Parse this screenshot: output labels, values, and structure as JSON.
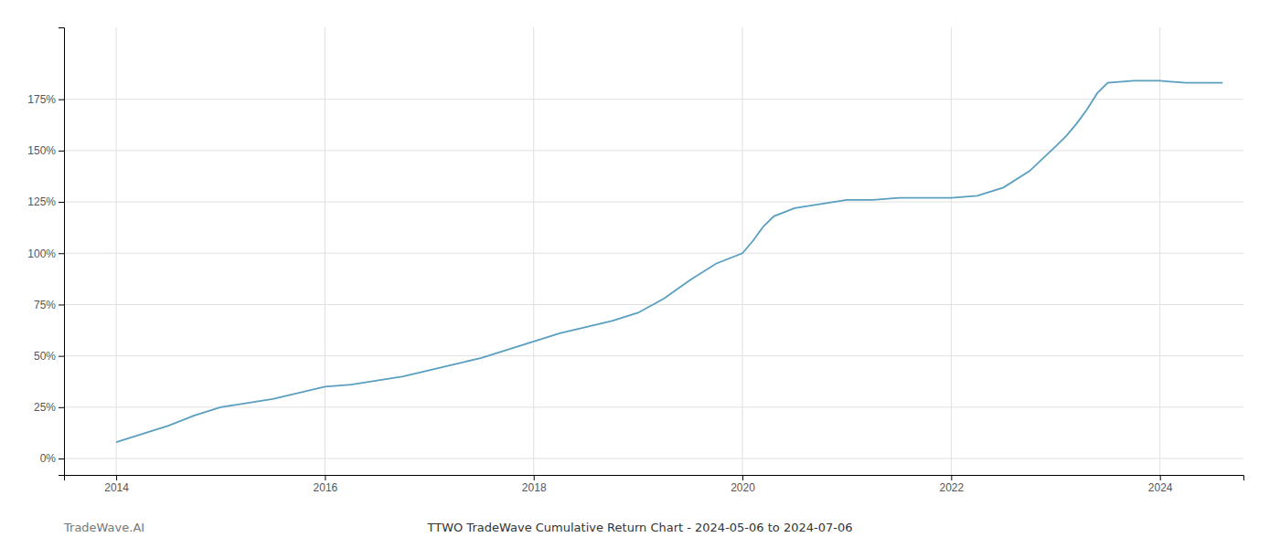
{
  "chart_data": {
    "type": "line",
    "title": "TTWO TradeWave Cumulative Return Chart - 2024-05-06 to 2024-07-06",
    "annotations": [
      "TradeWave.AI"
    ],
    "color": "#5a9fc0",
    "grid": true,
    "xlim": [
      2013.5,
      2024.8
    ],
    "xticks": [
      2014,
      2016,
      2018,
      2020,
      2022,
      2024
    ],
    "ylim": [
      -8,
      210
    ],
    "yticks": [
      {
        "value": 0,
        "label": "0%"
      },
      {
        "value": 25,
        "label": "25%"
      },
      {
        "value": 50,
        "label": "50%"
      },
      {
        "value": 75,
        "label": "75%"
      },
      {
        "value": 100,
        "label": "100%"
      },
      {
        "value": 125,
        "label": "125%"
      },
      {
        "value": 150,
        "label": "150%"
      },
      {
        "value": 175,
        "label": "175%"
      }
    ],
    "x": [
      2014.0,
      2014.25,
      2014.5,
      2014.75,
      2015.0,
      2015.25,
      2015.5,
      2015.75,
      2016.0,
      2016.25,
      2016.5,
      2016.75,
      2017.0,
      2017.25,
      2017.5,
      2017.75,
      2018.0,
      2018.25,
      2018.5,
      2018.75,
      2019.0,
      2019.25,
      2019.5,
      2019.75,
      2020.0,
      2020.1,
      2020.2,
      2020.3,
      2020.5,
      2020.75,
      2021.0,
      2021.25,
      2021.5,
      2021.75,
      2022.0,
      2022.25,
      2022.5,
      2022.75,
      2023.0,
      2023.1,
      2023.2,
      2023.3,
      2023.4,
      2023.5,
      2023.75,
      2024.0,
      2024.25,
      2024.5,
      2024.6
    ],
    "values": [
      8,
      12,
      16,
      21,
      25,
      27,
      29,
      32,
      35,
      36,
      38,
      40,
      43,
      46,
      49,
      53,
      57,
      61,
      64,
      67,
      71,
      78,
      87,
      95,
      100,
      106,
      113,
      118,
      122,
      124,
      126,
      126,
      127,
      127,
      127,
      128,
      132,
      140,
      152,
      157,
      163,
      170,
      178,
      183,
      184,
      184,
      183,
      183,
      183
    ]
  }
}
